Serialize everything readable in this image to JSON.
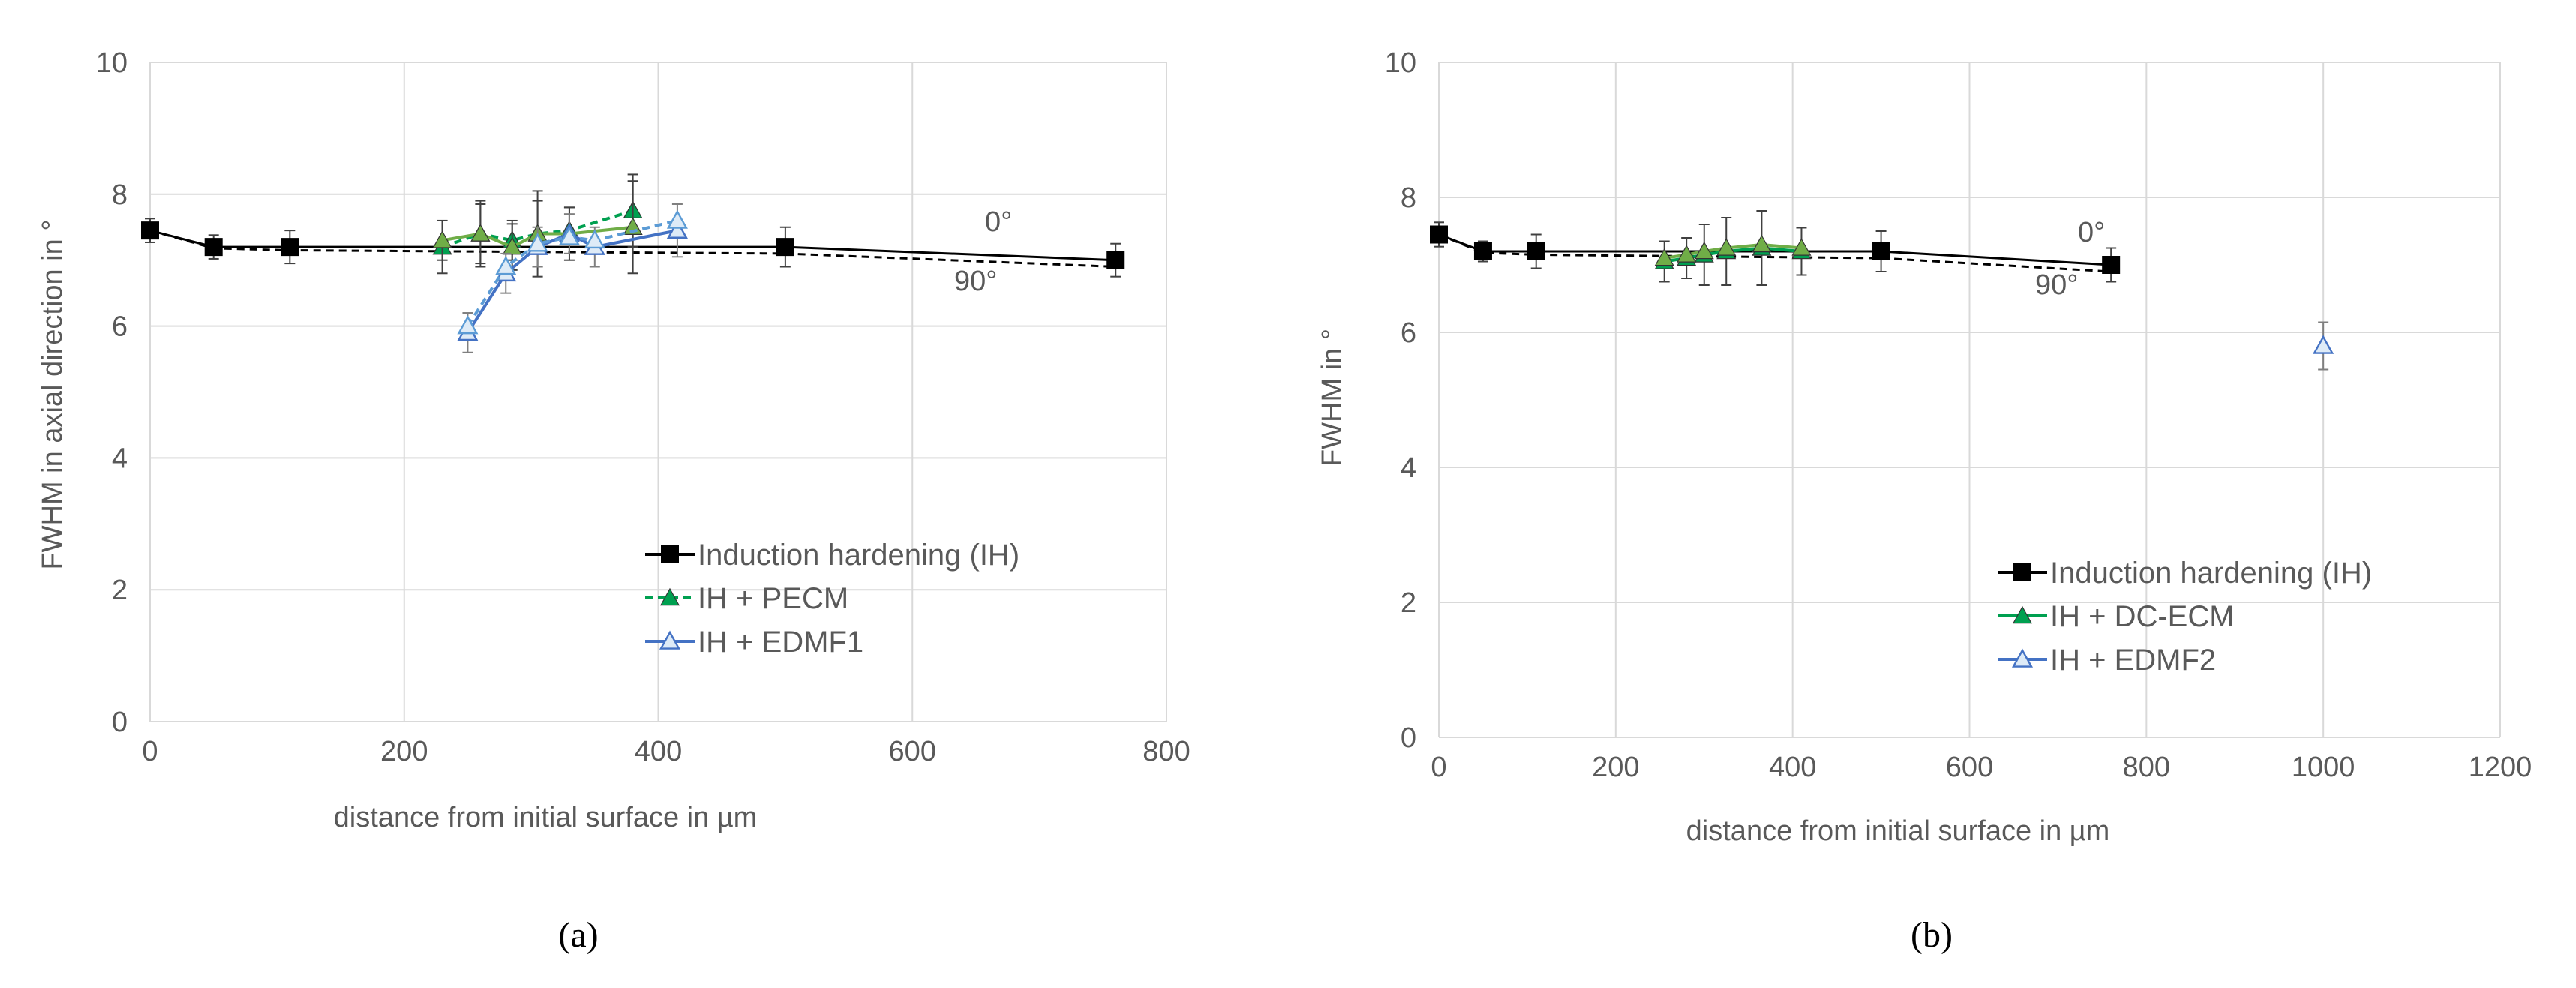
{
  "chart_data": [
    {
      "id": "a",
      "type": "line",
      "caption": "(a)",
      "xlabel": "distance from initial surface in µm",
      "ylabel": "FWHM in axial direction in °",
      "xlim": [
        0,
        800
      ],
      "ylim": [
        0,
        10
      ],
      "xticks": [
        0,
        200,
        400,
        600,
        800
      ],
      "yticks": [
        0,
        2,
        4,
        6,
        8,
        10
      ],
      "grid": true,
      "legend_position": "bottom-right",
      "annotations": [
        "0°",
        "90°"
      ],
      "series": [
        {
          "name": "Induction hardening (IH)",
          "color": "#000000",
          "marker": "square",
          "style": "solid",
          "legend": true,
          "x": [
            0,
            50,
            110,
            500,
            760
          ],
          "y": [
            7.45,
            7.2,
            7.2,
            7.2,
            7.0
          ],
          "err": [
            0.18,
            0.18,
            0.25,
            0.3,
            0.25
          ]
        },
        {
          "name": "Induction hardening (IH) 90°",
          "color": "#000000",
          "marker": "square",
          "style": "dashed",
          "legend": false,
          "x": [
            0,
            50,
            110,
            500,
            760
          ],
          "y": [
            7.45,
            7.18,
            7.15,
            7.1,
            6.9
          ],
          "err": []
        },
        {
          "name": "IH + PECM",
          "color": "#00A050",
          "marker": "triangle-filled",
          "style": "dashed",
          "legend": true,
          "x": [
            230,
            260,
            285,
            305,
            330,
            380
          ],
          "y": [
            7.2,
            7.4,
            7.3,
            7.4,
            7.45,
            7.75
          ],
          "err": [
            0.4,
            0.5,
            0.3,
            0.5,
            0.35,
            0.55
          ]
        },
        {
          "name": "IH + PECM 90°",
          "color": "#70AD47",
          "marker": "triangle-filled",
          "style": "solid",
          "legend": false,
          "x": [
            230,
            260,
            285,
            305,
            330,
            380
          ],
          "y": [
            7.3,
            7.4,
            7.2,
            7.4,
            7.4,
            7.5
          ],
          "err": [
            0.3,
            0.45,
            0.35,
            0.65,
            0.4,
            0.7
          ]
        },
        {
          "name": "IH + EDMF1",
          "color": "#4472C4",
          "marker": "triangle-open",
          "style": "solid",
          "legend": true,
          "x": [
            250,
            280,
            305,
            330,
            350,
            415
          ],
          "y": [
            5.9,
            6.8,
            7.2,
            7.4,
            7.2,
            7.45
          ],
          "err": [
            0.3,
            0.3,
            0.3,
            0.3,
            0.3,
            0.4
          ]
        },
        {
          "name": "IH + EDMF1 90°",
          "color": "#5B9BD5",
          "marker": "triangle-open",
          "style": "dashed",
          "legend": false,
          "x": [
            250,
            280,
            305,
            330,
            350,
            415
          ],
          "y": [
            6.0,
            6.9,
            7.25,
            7.35,
            7.3,
            7.6
          ],
          "err": []
        }
      ]
    },
    {
      "id": "b",
      "type": "line",
      "caption": "(b)",
      "xlabel": "distance from initial surface in µm",
      "ylabel": "FWHM in °",
      "xlim": [
        0,
        1200
      ],
      "ylim": [
        0,
        10
      ],
      "xticks": [
        0,
        200,
        400,
        600,
        800,
        1000,
        1200
      ],
      "yticks": [
        0,
        2,
        4,
        6,
        8,
        10
      ],
      "grid": true,
      "legend_position": "bottom-right",
      "annotations": [
        "0°",
        "90°"
      ],
      "series": [
        {
          "name": "Induction hardening (IH)",
          "color": "#000000",
          "marker": "square",
          "style": "solid",
          "legend": true,
          "x": [
            0,
            50,
            110,
            500,
            760
          ],
          "y": [
            7.45,
            7.2,
            7.2,
            7.2,
            7.0
          ],
          "err": [
            0.18,
            0.15,
            0.25,
            0.3,
            0.25
          ]
        },
        {
          "name": "Induction hardening (IH) 90°",
          "color": "#000000",
          "marker": "square",
          "style": "dashed",
          "legend": false,
          "x": [
            0,
            50,
            110,
            500,
            760
          ],
          "y": [
            7.45,
            7.18,
            7.15,
            7.1,
            6.9
          ],
          "err": []
        },
        {
          "name": "IH + DC-ECM",
          "color": "#00A050",
          "marker": "triangle-filled",
          "style": "solid",
          "legend": true,
          "x": [
            255,
            280,
            300,
            325,
            365,
            410
          ],
          "y": [
            7.05,
            7.1,
            7.15,
            7.2,
            7.25,
            7.2
          ],
          "err": [
            0.3,
            0.3,
            0.45,
            0.5,
            0.55,
            0.35
          ]
        },
        {
          "name": "IH + DC-ECM 90°",
          "color": "#70AD47",
          "marker": "triangle-filled",
          "style": "solid",
          "legend": false,
          "x": [
            255,
            280,
            300,
            325,
            365,
            410
          ],
          "y": [
            7.1,
            7.15,
            7.2,
            7.25,
            7.3,
            7.25
          ],
          "err": []
        },
        {
          "name": "IH + EDMF2",
          "color": "#4472C4",
          "marker": "triangle-open",
          "style": "solid",
          "legend": true,
          "x": [
            1000
          ],
          "y": [
            5.8
          ],
          "err": [
            0.35
          ]
        }
      ]
    }
  ]
}
